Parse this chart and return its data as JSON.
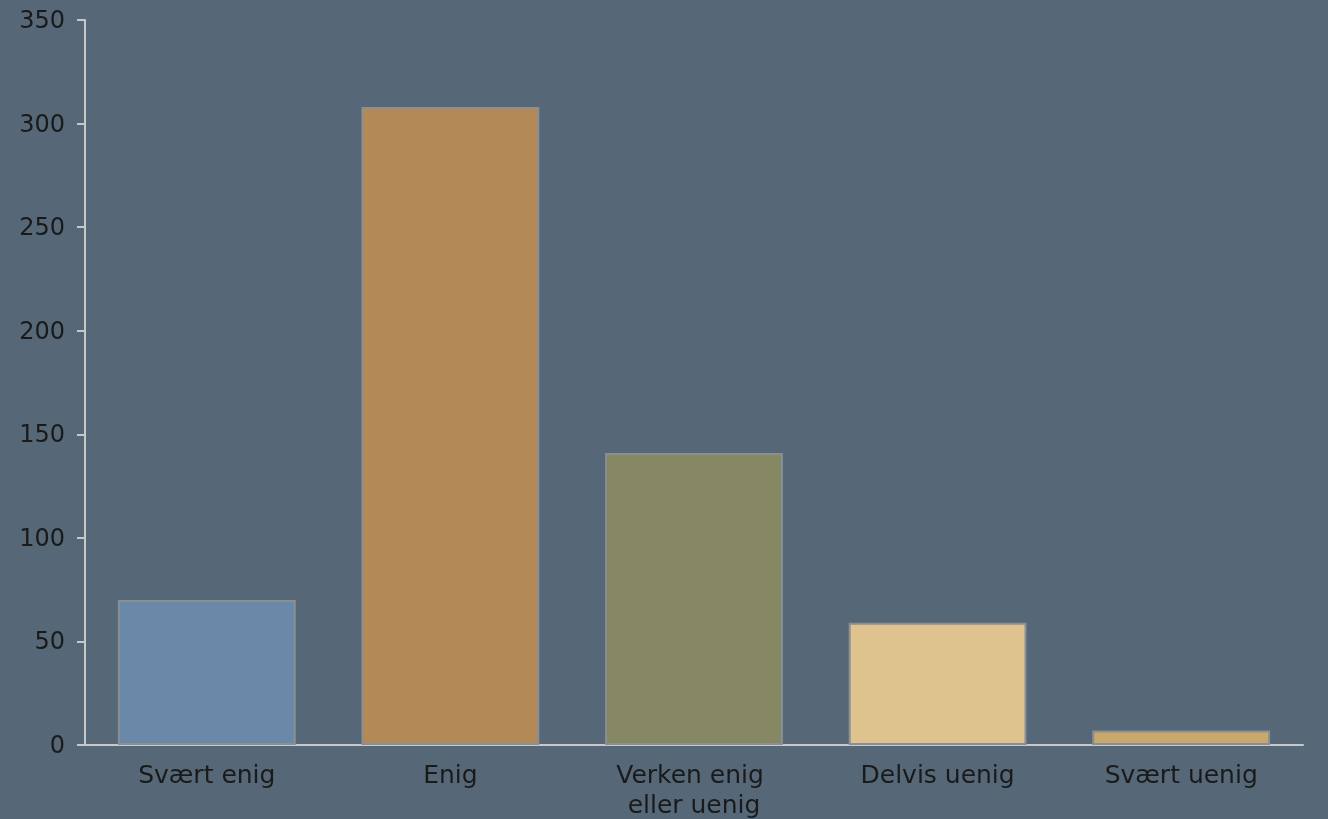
{
  "chart_data": {
    "type": "bar",
    "categories": [
      "Svært enig",
      "Enig",
      "Verken enig eller uenig",
      "Delvis uenig",
      "Svært uenig"
    ],
    "values": [
      70,
      308,
      141,
      59,
      7
    ],
    "colors": [
      "#6a89a8",
      "#b38a56",
      "#858862",
      "#dfc38f",
      "#c9a86c"
    ],
    "ylim": [
      0,
      350
    ],
    "yticks": [
      0,
      50,
      100,
      150,
      200,
      250,
      300,
      350
    ],
    "grid": false
  }
}
